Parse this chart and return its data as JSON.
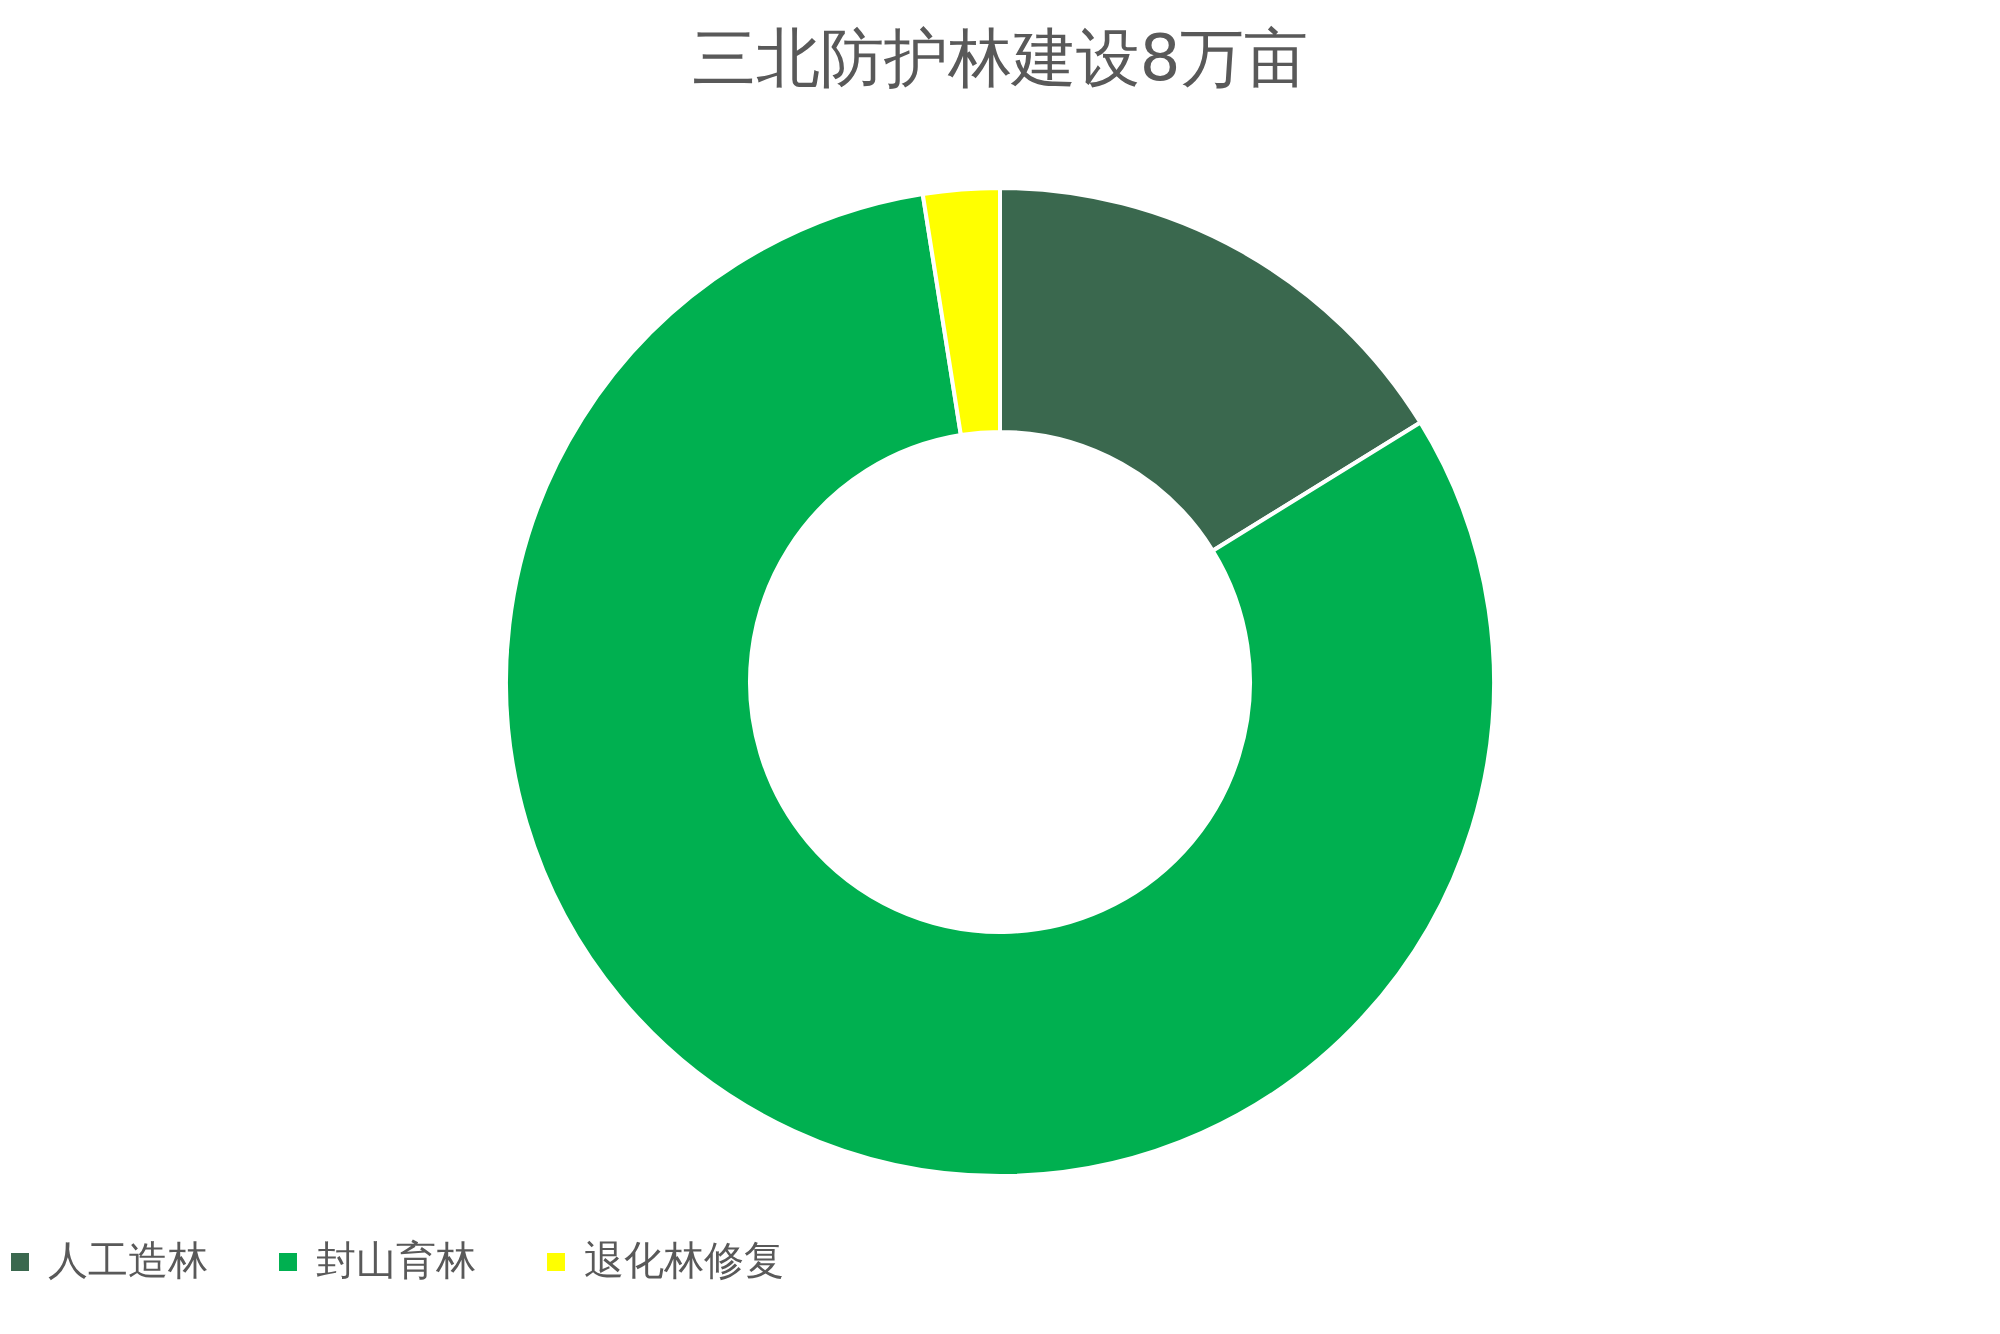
{
  "chart_data": {
    "type": "donut",
    "title": "三北防护林建设8万亩",
    "categories": [
      "人工造林",
      "封山育林",
      "退化林修复"
    ],
    "values": [
      16.2,
      81.3,
      2.5
    ],
    "colors": [
      "#3a684e",
      "#00b050",
      "#ffff00"
    ],
    "legend": "bottom"
  }
}
